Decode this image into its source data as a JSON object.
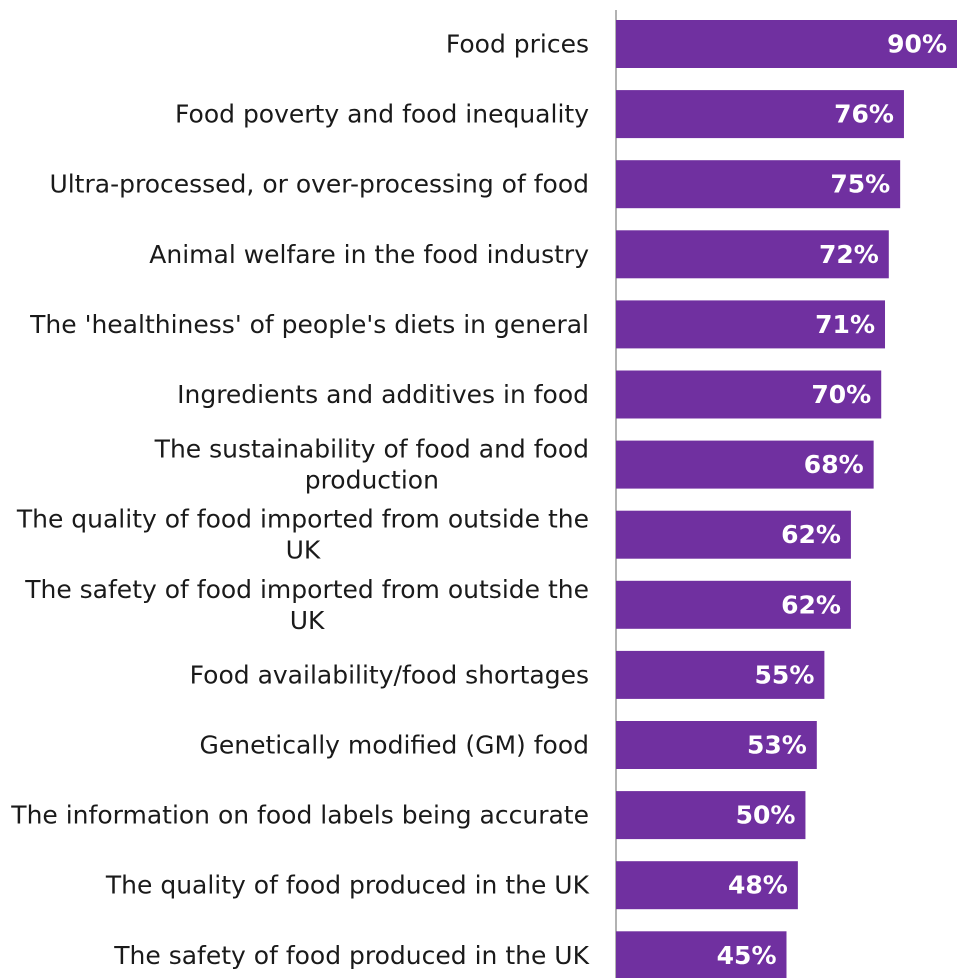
{
  "chart_data": {
    "type": "bar",
    "orientation": "horizontal",
    "categories": [
      "Food prices",
      "Food poverty and food inequality",
      "Ultra-processed, or over-processing of food",
      "Animal welfare in the food industry",
      "The 'healthiness' of people's diets in general",
      "Ingredients and additives in food",
      "The sustainability of food and food production",
      "The quality of food imported from outside the UK",
      "The safety of food imported from outside the UK",
      "Food availability/food shortages",
      "Genetically modified (GM) food",
      "The information on food labels being accurate",
      "The quality of food produced in the UK",
      "The safety of food produced in the UK"
    ],
    "category_lines": [
      [
        "Food prices"
      ],
      [
        "Food poverty and food inequality"
      ],
      [
        "Ultra-processed, or over-processing of food"
      ],
      [
        "Animal welfare in the food industry"
      ],
      [
        "The 'healthiness' of people's diets in general"
      ],
      [
        "Ingredients and additives in food"
      ],
      [
        "The sustainability of food and food",
        "production"
      ],
      [
        "The quality of food imported from outside the",
        "UK"
      ],
      [
        "The safety of food imported from outside the",
        "UK"
      ],
      [
        "Food availability/food shortages"
      ],
      [
        "Genetically modified (GM) food"
      ],
      [
        "The information on food labels being accurate"
      ],
      [
        "The quality of food produced in the UK"
      ],
      [
        "The safety of food produced in the UK"
      ]
    ],
    "values": [
      90,
      76,
      75,
      72,
      71,
      70,
      68,
      62,
      62,
      55,
      53,
      50,
      48,
      45
    ],
    "value_labels": [
      "90%",
      "76%",
      "75%",
      "72%",
      "71%",
      "70%",
      "68%",
      "62%",
      "62%",
      "55%",
      "53%",
      "50%",
      "48%",
      "45%"
    ],
    "xlim": [
      0,
      90
    ],
    "bar_color": "#7030a0",
    "value_label_color": "#ffffff",
    "grid": false,
    "legend": "none",
    "title": "",
    "xlabel": "",
    "ylabel": ""
  }
}
